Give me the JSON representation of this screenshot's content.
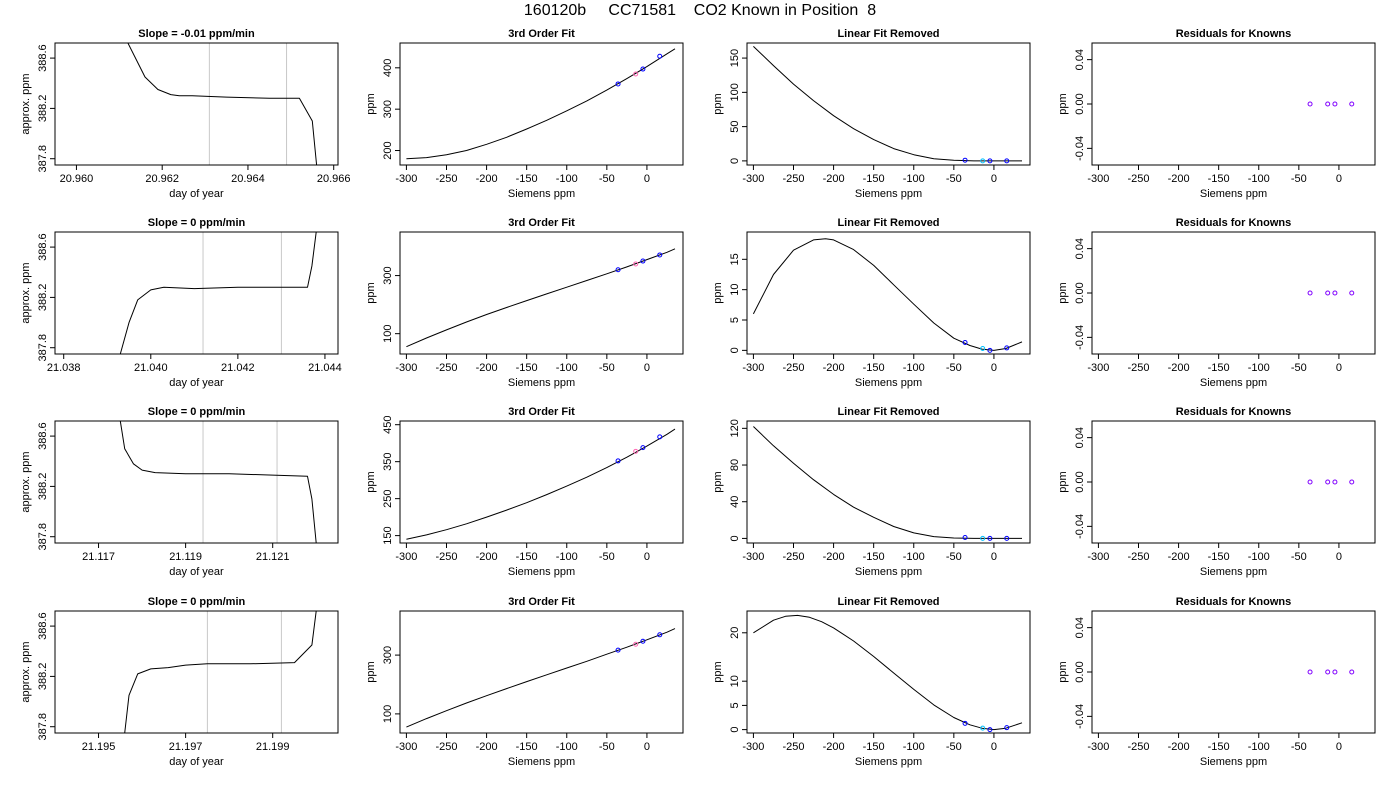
{
  "title": "160120b     CC71581    CO2 Known in Position  8",
  "colors": {
    "line": "#000000",
    "vline": "#c8c8c8",
    "known": "#0000ff",
    "ref": "#00c0ff",
    "pink": "#ff69b4",
    "resid": "#8000ff"
  },
  "chart_data": [
    {
      "type": "line",
      "title": "Slope =  -0.01  ppm/min",
      "xlabel": "day of year",
      "ylabel": "approx. ppm",
      "xlim": [
        20.9595,
        20.9661
      ],
      "ylim": [
        387.75,
        388.72
      ],
      "xticks": [
        20.96,
        20.962,
        20.964,
        20.966
      ],
      "xtick_labels": [
        "20.960",
        "20.962",
        "20.964",
        "20.966"
      ],
      "yticks": [
        387.8,
        388.2,
        388.6
      ],
      "ytick_labels": [
        "387.8",
        "388.2",
        "388.6"
      ],
      "vlines": [
        20.9631,
        20.9649
      ],
      "x": [
        20.9612,
        20.9616,
        20.9619,
        20.9622,
        20.9624,
        20.9627,
        20.9635,
        20.9645,
        20.9652,
        20.9655,
        20.9656
      ],
      "y": [
        388.72,
        388.45,
        388.35,
        388.31,
        388.3,
        388.3,
        388.29,
        388.28,
        388.28,
        388.1,
        387.75
      ]
    },
    {
      "type": "line",
      "title": "3rd Order Fit",
      "xlabel": "Siemens ppm",
      "ylabel": "ppm",
      "xlim": [
        -308,
        45
      ],
      "ylim": [
        165,
        460
      ],
      "xticks": [
        -300,
        -250,
        -200,
        -150,
        -100,
        -50,
        0
      ],
      "xtick_labels": [
        "-300",
        "-250",
        "-200",
        "-150",
        "-100",
        "-50",
        "0"
      ],
      "yticks": [
        200,
        300,
        400
      ],
      "ytick_labels": [
        "200",
        "300",
        "400"
      ],
      "x": [
        -300,
        -275,
        -250,
        -225,
        -200,
        -175,
        -150,
        -125,
        -100,
        -75,
        -50,
        -25,
        0,
        25,
        35
      ],
      "y": [
        180,
        183,
        190,
        200,
        215,
        232,
        252,
        273,
        296,
        320,
        346,
        374,
        403,
        434,
        446
      ],
      "points": [
        {
          "x": -36,
          "y": 361,
          "k": "known"
        },
        {
          "x": -14,
          "y": 385,
          "k": "pink"
        },
        {
          "x": -5,
          "y": 397,
          "k": "known"
        },
        {
          "x": 16,
          "y": 428,
          "k": "known"
        }
      ]
    },
    {
      "type": "line",
      "title": "Linear Fit Removed",
      "xlabel": "Siemens ppm",
      "ylabel": "ppm",
      "xlim": [
        -308,
        45
      ],
      "ylim": [
        -6,
        172
      ],
      "xticks": [
        -300,
        -250,
        -200,
        -150,
        -100,
        -50,
        0
      ],
      "xtick_labels": [
        "-300",
        "-250",
        "-200",
        "-150",
        "-100",
        "-50",
        "0"
      ],
      "yticks": [
        0,
        50,
        100,
        150
      ],
      "ytick_labels": [
        "0",
        "50",
        "100",
        "150"
      ],
      "x": [
        -300,
        -275,
        -250,
        -225,
        -200,
        -175,
        -150,
        -125,
        -100,
        -75,
        -50,
        -25,
        0,
        25,
        35
      ],
      "y": [
        167,
        139,
        112,
        88,
        66,
        47,
        31,
        18,
        9,
        3,
        1,
        0,
        0,
        0,
        0
      ],
      "points": [
        {
          "x": -36,
          "y": 1,
          "k": "known"
        },
        {
          "x": -14,
          "y": 0,
          "k": "ref"
        },
        {
          "x": -5,
          "y": 0,
          "k": "known"
        },
        {
          "x": 16,
          "y": 0,
          "k": "known"
        }
      ]
    },
    {
      "type": "scatter",
      "title": "Residuals for Knowns",
      "xlabel": "Siemens ppm",
      "ylabel": "ppm",
      "xlim": [
        -308,
        45
      ],
      "ylim": [
        -0.055,
        0.055
      ],
      "xticks": [
        -300,
        -250,
        -200,
        -150,
        -100,
        -50,
        0
      ],
      "xtick_labels": [
        "-300",
        "-250",
        "-200",
        "-150",
        "-100",
        "-50",
        "0"
      ],
      "yticks": [
        -0.04,
        0.0,
        0.04
      ],
      "ytick_labels": [
        "-0.04",
        "0.00",
        "0.04"
      ],
      "x": [],
      "y": [],
      "points": [
        {
          "x": -36,
          "y": 0,
          "k": "resid"
        },
        {
          "x": -14,
          "y": 0,
          "k": "resid"
        },
        {
          "x": -5,
          "y": 0,
          "k": "resid"
        },
        {
          "x": 16,
          "y": 0,
          "k": "resid"
        }
      ]
    },
    {
      "type": "line",
      "title": "Slope =  0  ppm/min",
      "xlabel": "day of year",
      "ylabel": "approx. ppm",
      "xlim": [
        21.0378,
        21.0443
      ],
      "ylim": [
        387.75,
        388.72
      ],
      "xticks": [
        21.038,
        21.04,
        21.042,
        21.044
      ],
      "xtick_labels": [
        "21.038",
        "21.040",
        "21.042",
        "21.044"
      ],
      "yticks": [
        387.8,
        388.2,
        388.6
      ],
      "ytick_labels": [
        "387.8",
        "388.2",
        "388.6"
      ],
      "vlines": [
        21.0412,
        21.043
      ],
      "x": [
        21.0393,
        21.0395,
        21.0397,
        21.04,
        21.0403,
        21.041,
        21.042,
        21.043,
        21.0436,
        21.0437,
        21.0438
      ],
      "y": [
        387.75,
        388.0,
        388.18,
        388.26,
        388.28,
        388.27,
        388.28,
        388.28,
        388.28,
        388.45,
        388.72
      ]
    },
    {
      "type": "line",
      "title": "3rd Order Fit",
      "xlabel": "Siemens ppm",
      "ylabel": "ppm",
      "xlim": [
        -308,
        45
      ],
      "ylim": [
        30,
        450
      ],
      "xticks": [
        -300,
        -250,
        -200,
        -150,
        -100,
        -50,
        0
      ],
      "xtick_labels": [
        "-300",
        "-250",
        "-200",
        "-150",
        "-100",
        "-50",
        "0"
      ],
      "yticks": [
        100,
        300
      ],
      "ytick_labels": [
        "100",
        "300"
      ],
      "x": [
        -300,
        -275,
        -250,
        -225,
        -200,
        -175,
        -150,
        -125,
        -100,
        -75,
        -50,
        -25,
        0,
        25,
        35
      ],
      "y": [
        55,
        85,
        113,
        140,
        166,
        190,
        214,
        237,
        260,
        283,
        306,
        330,
        355,
        380,
        392
      ],
      "points": [
        {
          "x": -36,
          "y": 320,
          "k": "known"
        },
        {
          "x": -14,
          "y": 340,
          "k": "pink"
        },
        {
          "x": -5,
          "y": 350,
          "k": "known"
        },
        {
          "x": 16,
          "y": 371,
          "k": "known"
        }
      ]
    },
    {
      "type": "line",
      "title": "Linear Fit Removed",
      "xlabel": "Siemens ppm",
      "ylabel": "ppm",
      "xlim": [
        -308,
        45
      ],
      "ylim": [
        -0.6,
        19.5
      ],
      "xticks": [
        -300,
        -250,
        -200,
        -150,
        -100,
        -50,
        0
      ],
      "xtick_labels": [
        "-300",
        "-250",
        "-200",
        "-150",
        "-100",
        "-50",
        "0"
      ],
      "yticks": [
        0,
        5,
        10,
        15
      ],
      "ytick_labels": [
        "0",
        "5",
        "10",
        "15"
      ],
      "x": [
        -300,
        -275,
        -250,
        -225,
        -210,
        -200,
        -175,
        -150,
        -125,
        -100,
        -75,
        -50,
        -30,
        -15,
        0,
        15,
        35
      ],
      "y": [
        6,
        12.5,
        16.5,
        18.2,
        18.4,
        18.2,
        16.6,
        14,
        10.8,
        7.6,
        4.5,
        2,
        0.8,
        0.2,
        0,
        0.3,
        1.4
      ],
      "points": [
        {
          "x": -36,
          "y": 1.3,
          "k": "known"
        },
        {
          "x": -14,
          "y": 0.3,
          "k": "ref"
        },
        {
          "x": -5,
          "y": 0,
          "k": "known"
        },
        {
          "x": 16,
          "y": 0.4,
          "k": "known"
        }
      ]
    },
    {
      "type": "scatter",
      "title": "Residuals for Knowns",
      "xlabel": "Siemens ppm",
      "ylabel": "ppm",
      "xlim": [
        -308,
        45
      ],
      "ylim": [
        -0.055,
        0.055
      ],
      "xticks": [
        -300,
        -250,
        -200,
        -150,
        -100,
        -50,
        0
      ],
      "xtick_labels": [
        "-300",
        "-250",
        "-200",
        "-150",
        "-100",
        "-50",
        "0"
      ],
      "yticks": [
        -0.04,
        0.0,
        0.04
      ],
      "ytick_labels": [
        "-0.04",
        "0.00",
        "0.04"
      ],
      "x": [],
      "y": [],
      "points": [
        {
          "x": -36,
          "y": 0,
          "k": "resid"
        },
        {
          "x": -14,
          "y": 0,
          "k": "resid"
        },
        {
          "x": -5,
          "y": 0,
          "k": "resid"
        },
        {
          "x": 16,
          "y": 0,
          "k": "resid"
        }
      ]
    },
    {
      "type": "line",
      "title": "Slope =  0  ppm/min",
      "xlabel": "day of year",
      "ylabel": "approx. ppm",
      "xlim": [
        21.116,
        21.1225
      ],
      "ylim": [
        387.75,
        388.72
      ],
      "xticks": [
        21.117,
        21.119,
        21.121
      ],
      "xtick_labels": [
        "21.117",
        "21.119",
        "21.121"
      ],
      "vlines": [
        21.1194,
        21.1211
      ],
      "yticks": [
        387.8,
        388.2,
        388.6
      ],
      "ytick_labels": [
        "387.8",
        "388.2",
        "388.6"
      ],
      "x": [
        21.1175,
        21.1176,
        21.1178,
        21.118,
        21.1183,
        21.119,
        21.12,
        21.121,
        21.1218,
        21.1219,
        21.122
      ],
      "y": [
        388.72,
        388.5,
        388.38,
        388.33,
        388.31,
        388.3,
        388.3,
        388.29,
        388.28,
        388.1,
        387.75
      ]
    },
    {
      "type": "line",
      "title": "3rd Order Fit",
      "xlabel": "Siemens ppm",
      "ylabel": "ppm",
      "xlim": [
        -308,
        45
      ],
      "ylim": [
        130,
        460
      ],
      "xticks": [
        -300,
        -250,
        -200,
        -150,
        -100,
        -50,
        0
      ],
      "xtick_labels": [
        "-300",
        "-250",
        "-200",
        "-150",
        "-100",
        "-50",
        "0"
      ],
      "yticks": [
        150,
        250,
        350,
        450
      ],
      "ytick_labels": [
        "150",
        "250",
        "350",
        "450"
      ],
      "x": [
        -300,
        -275,
        -250,
        -225,
        -200,
        -175,
        -150,
        -125,
        -100,
        -75,
        -50,
        -25,
        0,
        25,
        35
      ],
      "y": [
        140,
        152,
        166,
        182,
        200,
        219,
        239,
        261,
        284,
        308,
        334,
        362,
        392,
        424,
        438
      ],
      "points": [
        {
          "x": -36,
          "y": 352,
          "k": "known"
        },
        {
          "x": -14,
          "y": 378,
          "k": "pink"
        },
        {
          "x": -5,
          "y": 388,
          "k": "known"
        },
        {
          "x": 16,
          "y": 417,
          "k": "known"
        }
      ]
    },
    {
      "type": "line",
      "title": "Linear Fit Removed",
      "xlabel": "Siemens ppm",
      "ylabel": "ppm",
      "xlim": [
        -308,
        45
      ],
      "ylim": [
        -5,
        128
      ],
      "xticks": [
        -300,
        -250,
        -200,
        -150,
        -100,
        -50,
        0
      ],
      "xtick_labels": [
        "-300",
        "-250",
        "-200",
        "-150",
        "-100",
        "-50",
        "0"
      ],
      "yticks": [
        0,
        40,
        80,
        120
      ],
      "ytick_labels": [
        "0",
        "40",
        "80",
        "120"
      ],
      "x": [
        -300,
        -275,
        -250,
        -225,
        -200,
        -175,
        -150,
        -125,
        -100,
        -75,
        -50,
        -25,
        0,
        25,
        35
      ],
      "y": [
        122,
        101,
        82,
        64,
        48,
        34,
        23,
        13,
        6,
        2,
        0.5,
        0,
        0,
        0,
        0
      ],
      "points": [
        {
          "x": -36,
          "y": 1,
          "k": "known"
        },
        {
          "x": -14,
          "y": 0,
          "k": "ref"
        },
        {
          "x": -5,
          "y": 0,
          "k": "known"
        },
        {
          "x": 16,
          "y": 0,
          "k": "known"
        }
      ]
    },
    {
      "type": "scatter",
      "title": "Residuals for Knowns",
      "xlabel": "Siemens ppm",
      "ylabel": "ppm",
      "xlim": [
        -308,
        45
      ],
      "ylim": [
        -0.055,
        0.055
      ],
      "xticks": [
        -300,
        -250,
        -200,
        -150,
        -100,
        -50,
        0
      ],
      "xtick_labels": [
        "-300",
        "-250",
        "-200",
        "-150",
        "-100",
        "-50",
        "0"
      ],
      "yticks": [
        -0.04,
        0.0,
        0.04
      ],
      "ytick_labels": [
        "-0.04",
        "0.00",
        "0.04"
      ],
      "x": [],
      "y": [],
      "points": [
        {
          "x": -36,
          "y": 0,
          "k": "resid"
        },
        {
          "x": -14,
          "y": 0,
          "k": "resid"
        },
        {
          "x": -5,
          "y": 0,
          "k": "resid"
        },
        {
          "x": 16,
          "y": 0,
          "k": "resid"
        }
      ]
    },
    {
      "type": "line",
      "title": "Slope =  0  ppm/min",
      "xlabel": "day of year",
      "ylabel": "approx. ppm",
      "xlim": [
        21.194,
        21.2005
      ],
      "ylim": [
        387.75,
        388.72
      ],
      "xticks": [
        21.195,
        21.197,
        21.199
      ],
      "xtick_labels": [
        "21.195",
        "21.197",
        "21.199"
      ],
      "vlines": [
        21.1975,
        21.1992
      ],
      "yticks": [
        387.8,
        388.2,
        388.6
      ],
      "ytick_labels": [
        "387.8",
        "388.2",
        "388.6"
      ],
      "x": [
        21.1956,
        21.1957,
        21.1959,
        21.1962,
        21.1966,
        21.197,
        21.1975,
        21.1985,
        21.1995,
        21.1999,
        21.2
      ],
      "y": [
        387.75,
        388.05,
        388.22,
        388.26,
        388.27,
        388.29,
        388.3,
        388.3,
        388.31,
        388.45,
        388.72
      ]
    },
    {
      "type": "line",
      "title": "3rd Order Fit",
      "xlabel": "Siemens ppm",
      "ylabel": "ppm",
      "xlim": [
        -308,
        45
      ],
      "ylim": [
        35,
        450
      ],
      "xticks": [
        -300,
        -250,
        -200,
        -150,
        -100,
        -50,
        0
      ],
      "xtick_labels": [
        "-300",
        "-250",
        "-200",
        "-150",
        "-100",
        "-50",
        "0"
      ],
      "yticks": [
        100,
        300
      ],
      "ytick_labels": [
        "100",
        "300"
      ],
      "x": [
        -300,
        -275,
        -250,
        -225,
        -200,
        -175,
        -150,
        -125,
        -100,
        -75,
        -50,
        -25,
        0,
        25,
        35
      ],
      "y": [
        55,
        84,
        111,
        137,
        162,
        186,
        210,
        233,
        256,
        279,
        303,
        327,
        352,
        378,
        390
      ],
      "points": [
        {
          "x": -36,
          "y": 317,
          "k": "known"
        },
        {
          "x": -14,
          "y": 337,
          "k": "pink"
        },
        {
          "x": -5,
          "y": 347,
          "k": "known"
        },
        {
          "x": 16,
          "y": 369,
          "k": "known"
        }
      ]
    },
    {
      "type": "line",
      "title": "Linear Fit Removed",
      "xlabel": "Siemens ppm",
      "ylabel": "ppm",
      "xlim": [
        -308,
        45
      ],
      "ylim": [
        -0.7,
        24.5
      ],
      "xticks": [
        -300,
        -250,
        -200,
        -150,
        -100,
        -50,
        0
      ],
      "xtick_labels": [
        "-300",
        "-250",
        "-200",
        "-150",
        "-100",
        "-50",
        "0"
      ],
      "yticks": [
        0,
        5,
        10,
        20
      ],
      "ytick_labels": [
        "0",
        "5",
        "10",
        "20"
      ],
      "x": [
        -300,
        -275,
        -260,
        -245,
        -230,
        -215,
        -200,
        -175,
        -150,
        -125,
        -100,
        -75,
        -50,
        -30,
        -15,
        0,
        15,
        35
      ],
      "y": [
        20,
        22.6,
        23.4,
        23.6,
        23.2,
        22.3,
        21,
        18.3,
        15.1,
        11.7,
        8.3,
        5.1,
        2.5,
        1,
        0.3,
        0,
        0.3,
        1.4
      ],
      "points": [
        {
          "x": -36,
          "y": 1.3,
          "k": "known"
        },
        {
          "x": -14,
          "y": 0.3,
          "k": "ref"
        },
        {
          "x": -5,
          "y": 0,
          "k": "known"
        },
        {
          "x": 16,
          "y": 0.4,
          "k": "known"
        }
      ]
    },
    {
      "type": "scatter",
      "title": "Residuals for Knowns",
      "xlabel": "Siemens ppm",
      "ylabel": "ppm",
      "xlim": [
        -308,
        45
      ],
      "ylim": [
        -0.055,
        0.055
      ],
      "xticks": [
        -300,
        -250,
        -200,
        -150,
        -100,
        -50,
        0
      ],
      "xtick_labels": [
        "-300",
        "-250",
        "-200",
        "-150",
        "-100",
        "-50",
        "0"
      ],
      "yticks": [
        -0.04,
        0.0,
        0.04
      ],
      "ytick_labels": [
        "-0.04",
        "0.00",
        "0.04"
      ],
      "x": [],
      "y": [],
      "points": [
        {
          "x": -36,
          "y": 0,
          "k": "resid"
        },
        {
          "x": -14,
          "y": 0,
          "k": "resid"
        },
        {
          "x": -5,
          "y": 0,
          "k": "resid"
        },
        {
          "x": 16,
          "y": 0,
          "k": "resid"
        }
      ]
    }
  ]
}
